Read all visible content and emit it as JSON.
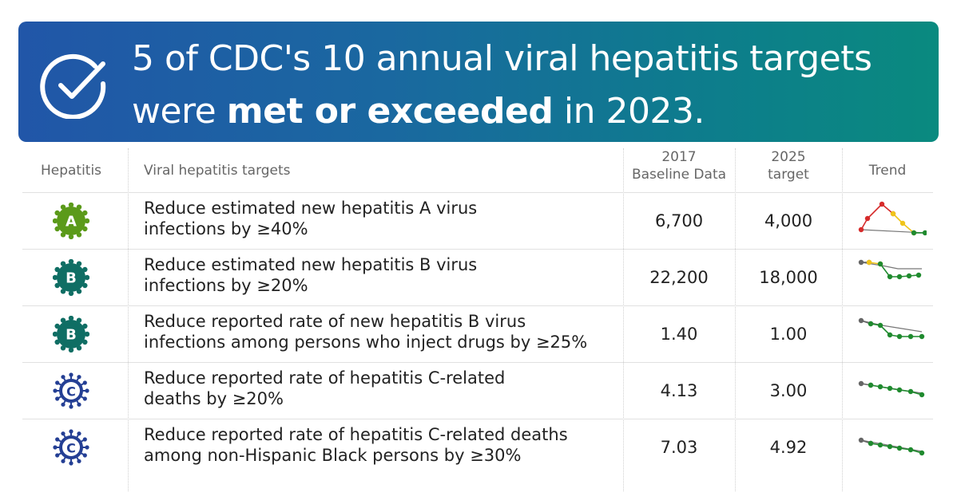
{
  "banner": {
    "line1": "5 of CDC's 10 annual viral hepatitis targets",
    "line2_pre": "were ",
    "line2_bold": "met or exceeded",
    "line2_post": " in 2023.",
    "icon": "check-circle-icon"
  },
  "headers": {
    "hepatitis": "Hepatitis",
    "targets": "Viral hepatitis targets",
    "baseline_l1": "2017",
    "baseline_l2": "Baseline Data",
    "target_l1": "2025",
    "target_l2": "target",
    "trend": "Trend"
  },
  "colors": {
    "hepA": "#5b9a1a",
    "hepB": "#0f6e64",
    "hepC": "#243f94",
    "trend_red": "#d62b2b",
    "trend_yellow": "#f0c419",
    "trend_green": "#1f8a2e",
    "trend_gray": "#666666"
  },
  "rows": [
    {
      "badge": "A",
      "text_l1": "Reduce estimated new hepatitis A virus",
      "text_l2": "infections by ≥40%",
      "baseline": "6,700",
      "target": "4,000"
    },
    {
      "badge": "B",
      "text_l1": "Reduce estimated new hepatitis B virus",
      "text_l2": "infections by ≥20%",
      "baseline": "22,200",
      "target": "18,000"
    },
    {
      "badge": "B",
      "text_l1": "Reduce reported rate of new hepatitis B virus",
      "text_l2": "infections among persons who inject drugs by ≥25%",
      "baseline": "1.40",
      "target": "1.00"
    },
    {
      "badge": "C",
      "text_l1": "Reduce reported rate of hepatitis C-related",
      "text_l2": "deaths by ≥20%",
      "baseline": "4.13",
      "target": "3.00"
    },
    {
      "badge": "C",
      "text_l1": "Reduce reported rate of hepatitis C-related deaths",
      "text_l2": "among non-Hispanic Black persons by ≥30%",
      "baseline": "7.03",
      "target": "4.92"
    }
  ]
}
